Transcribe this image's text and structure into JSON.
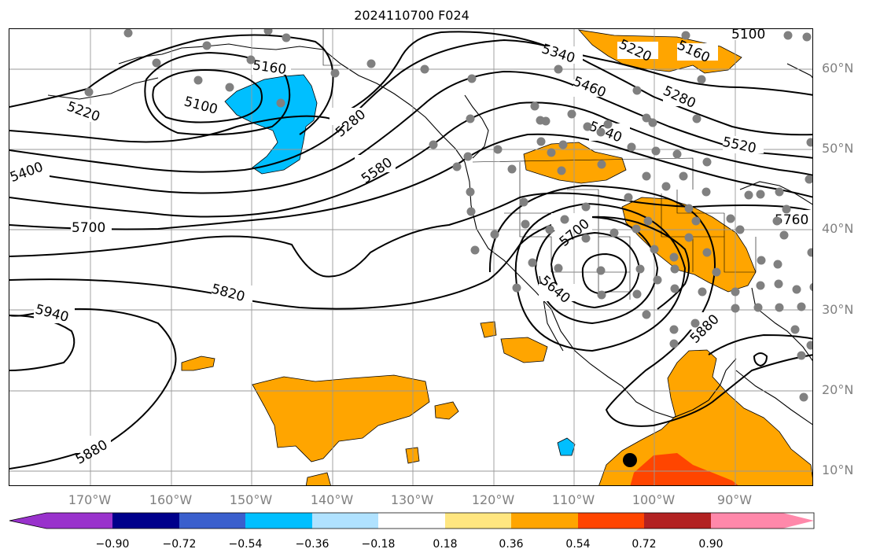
{
  "title": "2024110700 F024",
  "colors": {
    "contour": "#000000",
    "coast": "#000000",
    "grid": "#999999",
    "station": "#808080",
    "orange": "#ffa500",
    "dark_orange": "#ff4500",
    "cyan": "#00bfff"
  },
  "latitude_labels": [
    "60°N",
    "50°N",
    "40°N",
    "30°N",
    "20°N",
    "10°N"
  ],
  "longitude_labels": [
    "170°W",
    "160°W",
    "150°W",
    "140°W",
    "130°W",
    "120°W",
    "110°W",
    "100°W",
    "90°W"
  ],
  "contour_labels": {
    "c5100_alaska": "5100",
    "c5160_alaska": "5160",
    "c5220_alaska": "5220",
    "c5280_gulf": "5280",
    "c5340": "5340",
    "c5460": "5460",
    "c5580": "5580",
    "c5640_canada": "5640",
    "c5520_canada": "5520",
    "c5280_canada": "5280",
    "c5220_canada": "5220",
    "c5160_canada": "5160",
    "c5100_canada": "5100",
    "c5400": "5400",
    "c5700_pacific": "5700",
    "c5820": "5820",
    "c5940": "5940",
    "c5880_pacific": "5880",
    "c5700_us": "5700",
    "c5640_low": "5640",
    "c5880_gulf": "5880",
    "c5760_east": "5760"
  },
  "colorbar": {
    "levels": [
      "−0.90",
      "−0.72",
      "−0.54",
      "−0.36",
      "−0.18",
      "0.18",
      "0.36",
      "0.54",
      "0.72",
      "0.90"
    ],
    "colors": [
      "#9932cc",
      "#00008b",
      "#3a5fcd",
      "#00bfff",
      "#b0e2ff",
      "#ffffff",
      "#ffe680",
      "#ffa500",
      "#ff4500",
      "#b22222",
      "#ff88aa"
    ]
  },
  "markers": {
    "black_dot": "black-dot"
  }
}
